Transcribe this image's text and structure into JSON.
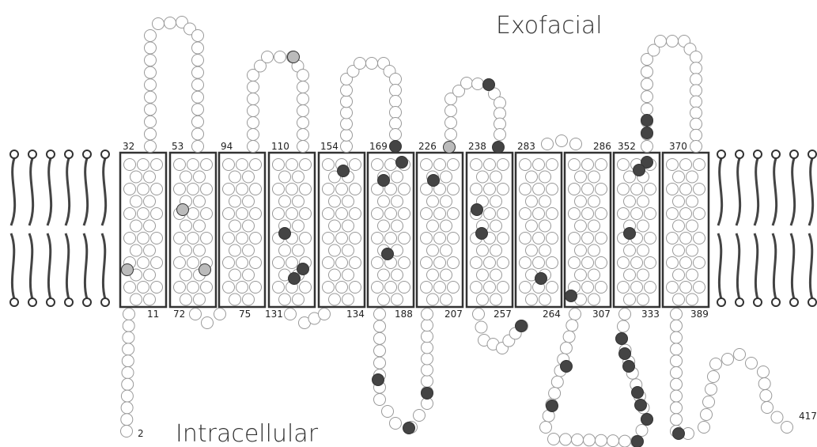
{
  "labels": {
    "exofacial": "Exofacial",
    "intracellular": "Intracellular"
  },
  "helices": [
    {
      "top": "32",
      "bottom": "11"
    },
    {
      "top": "53",
      "bottom": "72"
    },
    {
      "top": "94",
      "bottom": "75"
    },
    {
      "top": "110",
      "bottom": "131"
    },
    {
      "top": "154",
      "bottom": "134"
    },
    {
      "top": "169",
      "bottom": "188"
    },
    {
      "top": "226",
      "bottom": "207"
    },
    {
      "top": "238",
      "bottom": "257"
    },
    {
      "top": "283",
      "bottom": "264"
    },
    {
      "top": "286",
      "bottom": "307"
    },
    {
      "top": "352",
      "bottom": "333"
    },
    {
      "top": "370",
      "bottom": "389"
    }
  ],
  "n_terminus": "2",
  "c_terminus": "417"
}
